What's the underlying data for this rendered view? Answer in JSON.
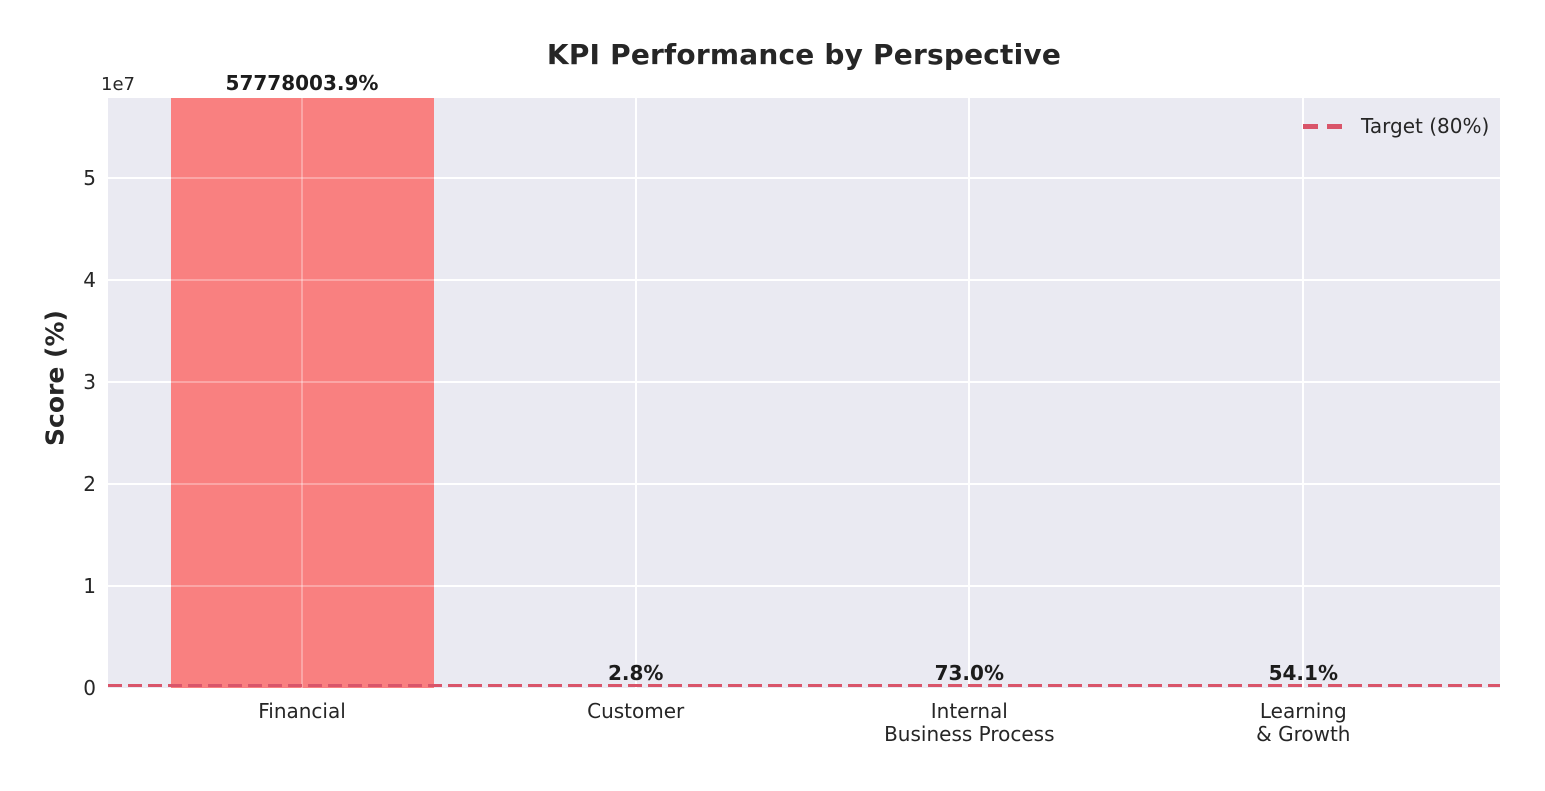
{
  "chart_data": {
    "type": "bar",
    "title": "KPI Performance by Perspective",
    "ylabel": "Score (%)",
    "xlabel": "",
    "y_offset_label": "1e7",
    "categories": [
      "Financial",
      "Customer",
      "Internal\nBusiness Process",
      "Learning\n& Growth"
    ],
    "values": [
      57778003.9,
      2.8,
      73.0,
      54.1
    ],
    "value_labels": [
      "57778003.9%",
      "2.8%",
      "73.0%",
      "54.1%"
    ],
    "y_ticks": [
      0,
      1,
      2,
      3,
      4,
      5
    ],
    "y_tick_scale": 10000000,
    "ylim": [
      0,
      57800000
    ],
    "grid": true,
    "legend_position": "upper right",
    "target": {
      "value": 80,
      "legend_label": "Target (80%)"
    },
    "colors": {
      "bar": "#F98080",
      "target_line": "#D9556A",
      "plot_background": "#EAEAF2",
      "grid_line": "#FFFFFF",
      "text": "#262626"
    }
  }
}
